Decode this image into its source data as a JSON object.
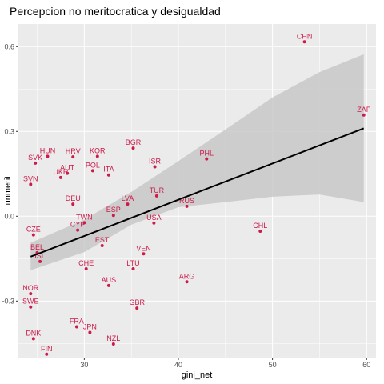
{
  "chart_data": {
    "type": "scatter",
    "title": "Percepcion no meritocratica y desigualdad",
    "xlabel": "gini_net",
    "ylabel": "unmerit",
    "xlim": [
      23.0,
      61.0
    ],
    "ylim": [
      -0.5,
      0.68
    ],
    "xticks": [
      30,
      40,
      50,
      60
    ],
    "yticks": [
      -0.3,
      0.0,
      0.3,
      0.6
    ],
    "ytick_labels": [
      "-0.3",
      "0.0",
      "0.3",
      "0.6"
    ],
    "grid": true,
    "colors": {
      "panel": "#ebebeb",
      "grid_major": "#ffffff",
      "point": "#cc1a4a",
      "label": "#cc1a4a",
      "line": "#000000",
      "band": "#c8c8c8"
    },
    "points": [
      {
        "label": "CHN",
        "x": 53.4,
        "y": 0.617
      },
      {
        "label": "ZAF",
        "x": 59.7,
        "y": 0.358
      },
      {
        "label": "HUN",
        "x": 26.1,
        "y": 0.212
      },
      {
        "label": "HRV",
        "x": 28.8,
        "y": 0.21
      },
      {
        "label": "KOR",
        "x": 31.4,
        "y": 0.212
      },
      {
        "label": "BGR",
        "x": 35.2,
        "y": 0.241
      },
      {
        "label": "PHL",
        "x": 43.0,
        "y": 0.203
      },
      {
        "label": "SVK",
        "x": 24.8,
        "y": 0.188
      },
      {
        "label": "AUT",
        "x": 28.2,
        "y": 0.152
      },
      {
        "label": "POL",
        "x": 30.9,
        "y": 0.161
      },
      {
        "label": "ISR",
        "x": 37.5,
        "y": 0.175
      },
      {
        "label": "UKR",
        "x": 27.5,
        "y": 0.137
      },
      {
        "label": "ITA",
        "x": 32.6,
        "y": 0.146
      },
      {
        "label": "SVN",
        "x": 24.3,
        "y": 0.113
      },
      {
        "label": "DEU",
        "x": 28.8,
        "y": 0.043
      },
      {
        "label": "LVA",
        "x": 34.6,
        "y": 0.043
      },
      {
        "label": "RUS",
        "x": 40.9,
        "y": 0.035
      },
      {
        "label": "TUR",
        "x": 37.7,
        "y": 0.072
      },
      {
        "label": "ESP",
        "x": 33.1,
        "y": 0.003
      },
      {
        "label": "TWN",
        "x": 30.0,
        "y": -0.023
      },
      {
        "label": "USA",
        "x": 37.4,
        "y": -0.024
      },
      {
        "label": "CZE",
        "x": 24.6,
        "y": -0.066
      },
      {
        "label": "CYP",
        "x": 29.3,
        "y": -0.049
      },
      {
        "label": "CHL",
        "x": 48.7,
        "y": -0.053
      },
      {
        "label": "EST",
        "x": 31.9,
        "y": -0.104
      },
      {
        "label": "BEL",
        "x": 25.0,
        "y": -0.129
      },
      {
        "label": "ISL",
        "x": 25.3,
        "y": -0.16
      },
      {
        "label": "VEN",
        "x": 36.3,
        "y": -0.133
      },
      {
        "label": "CHE",
        "x": 30.2,
        "y": -0.186
      },
      {
        "label": "LTU",
        "x": 35.2,
        "y": -0.186
      },
      {
        "label": "ARG",
        "x": 40.9,
        "y": -0.232
      },
      {
        "label": "AUS",
        "x": 32.6,
        "y": -0.245
      },
      {
        "label": "NOR",
        "x": 24.3,
        "y": -0.274
      },
      {
        "label": "SWE",
        "x": 24.3,
        "y": -0.321
      },
      {
        "label": "GBR",
        "x": 35.6,
        "y": -0.325
      },
      {
        "label": "FRA",
        "x": 29.2,
        "y": -0.391
      },
      {
        "label": "JPN",
        "x": 30.6,
        "y": -0.411
      },
      {
        "label": "DNK",
        "x": 24.6,
        "y": -0.433
      },
      {
        "label": "NZL",
        "x": 33.1,
        "y": -0.452
      },
      {
        "label": "FIN",
        "x": 26.0,
        "y": -0.488
      }
    ],
    "fit": {
      "x": [
        24.3,
        59.7
      ],
      "y": [
        -0.143,
        0.311
      ]
    },
    "band": {
      "x": [
        24.3,
        30,
        35,
        40,
        45,
        50,
        55,
        59.7
      ],
      "upper": [
        -0.094,
        -0.012,
        0.086,
        0.195,
        0.307,
        0.42,
        0.51,
        0.573
      ],
      "lower": [
        -0.191,
        -0.127,
        -0.03,
        0.032,
        0.05,
        0.069,
        0.077,
        0.05
      ]
    }
  }
}
